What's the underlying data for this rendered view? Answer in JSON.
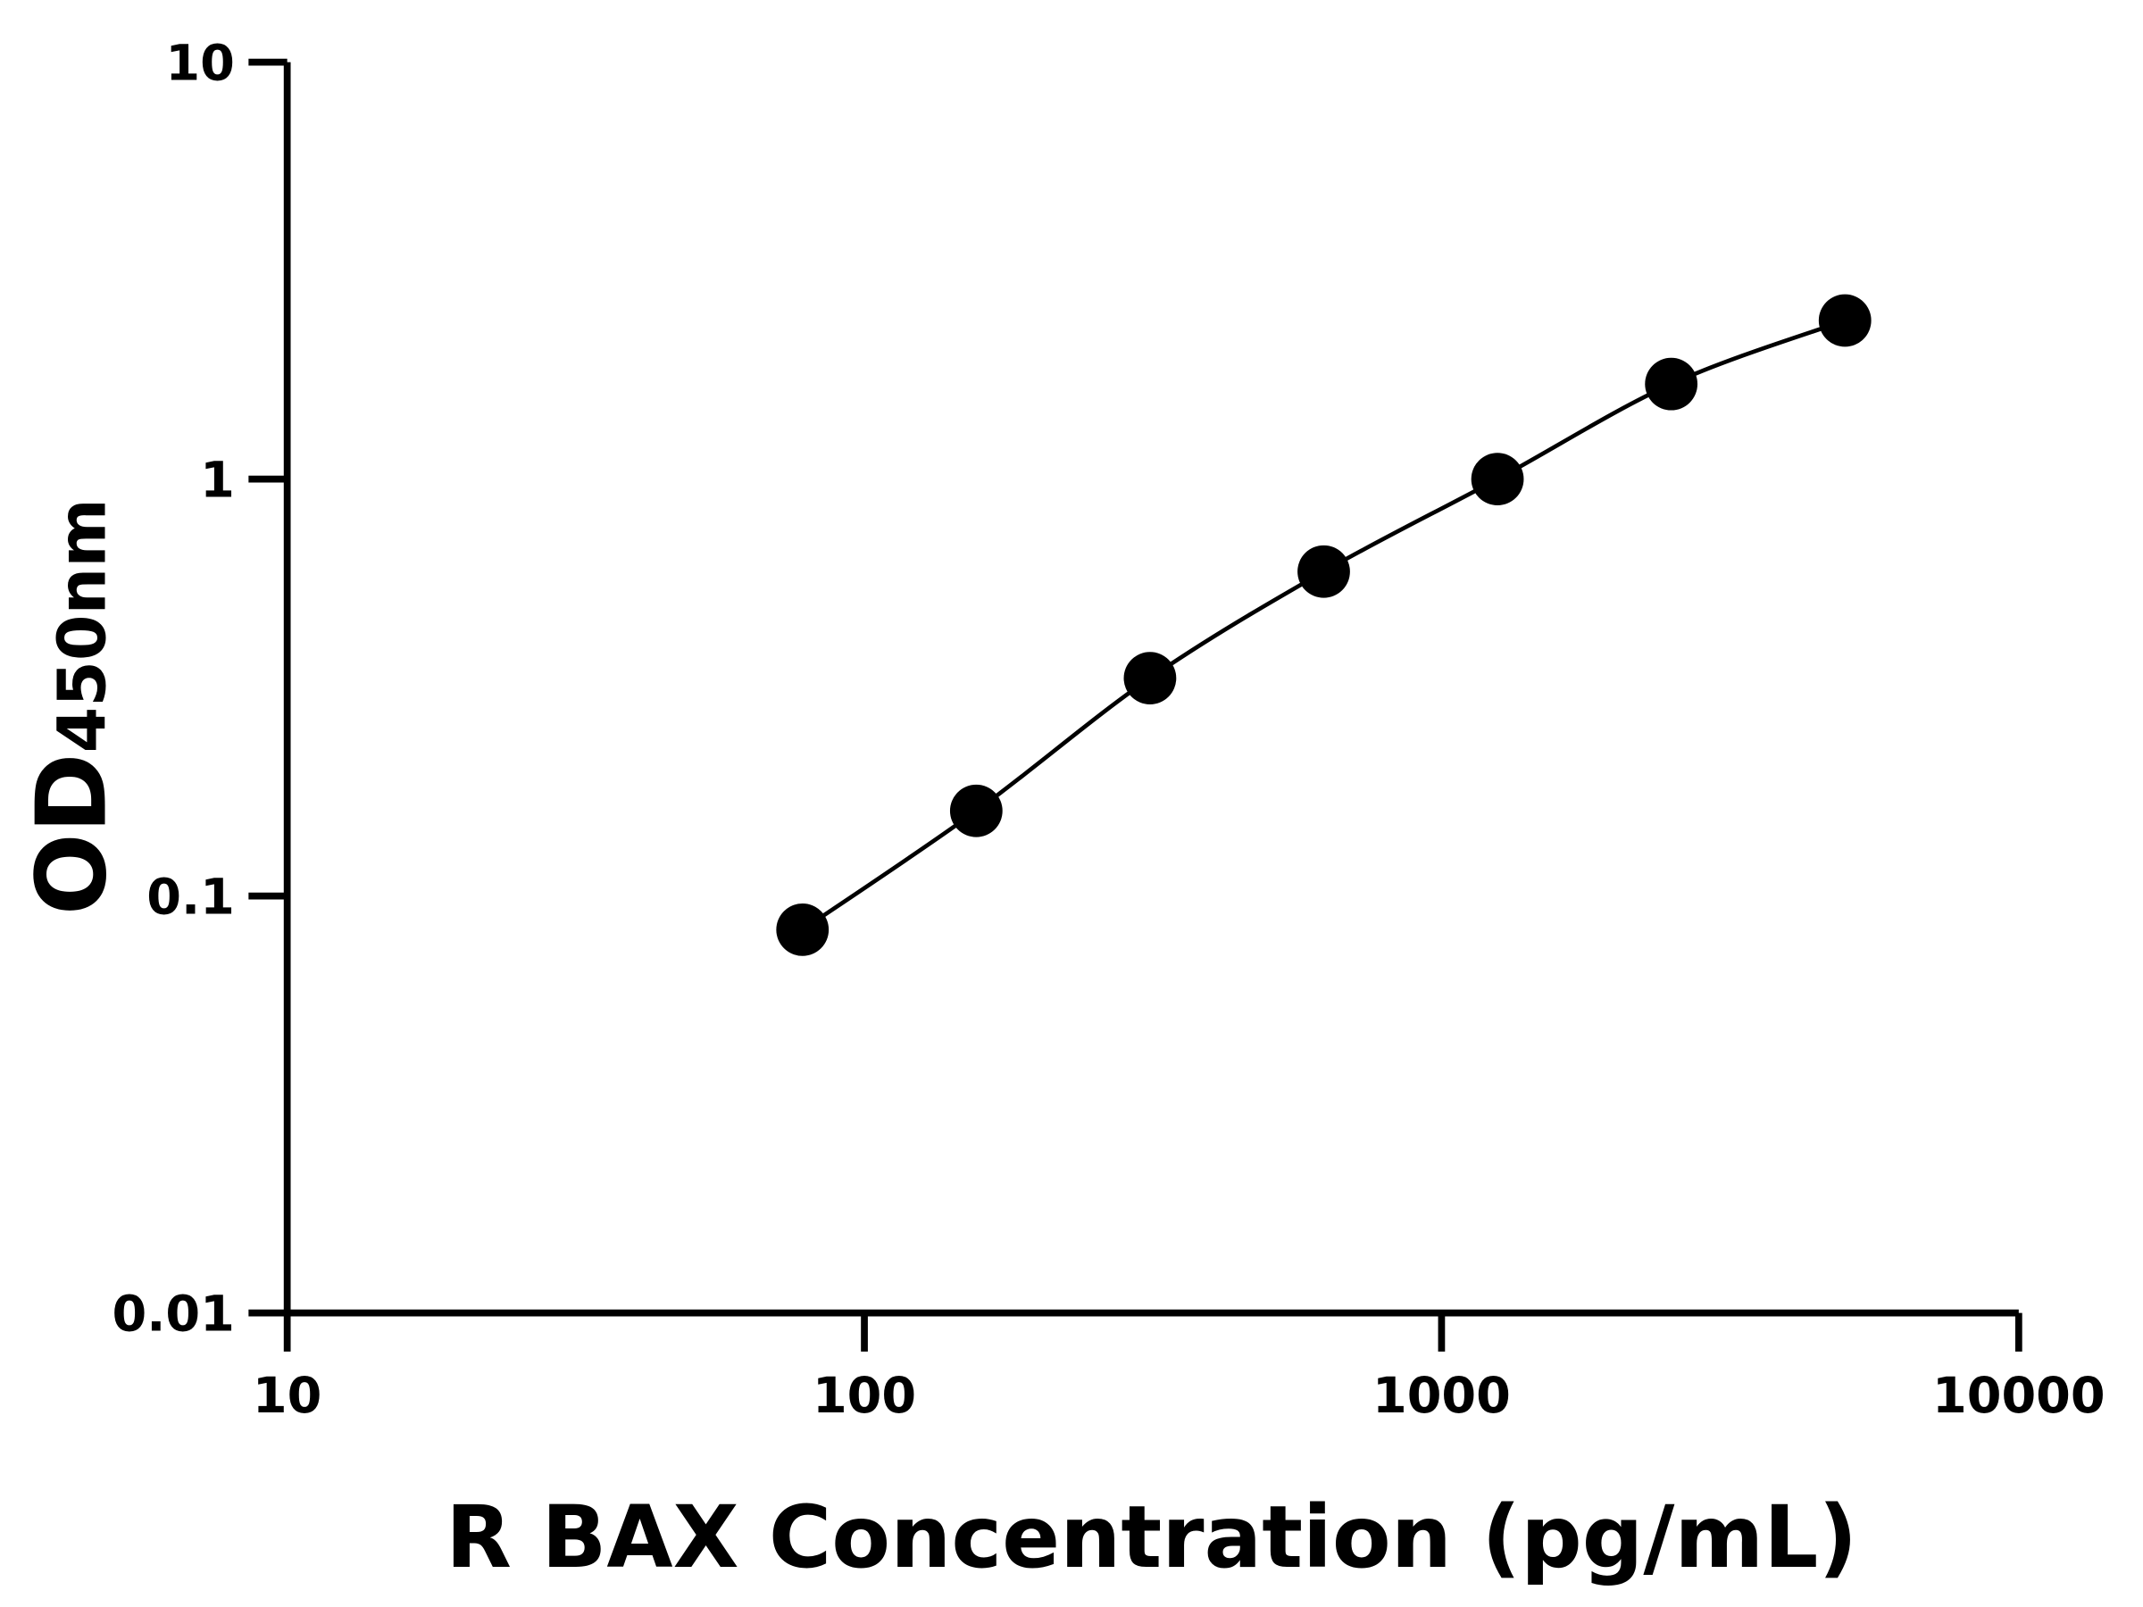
{
  "chart_data": {
    "type": "scatter",
    "x_label": "R BAX Concentration (pg/mL)",
    "y_label": {
      "main": "OD",
      "subscript": "450nm"
    },
    "x": [
      78.125,
      156.25,
      312.5,
      625,
      1250,
      2500,
      5000
    ],
    "values": [
      0.083,
      0.16,
      0.333,
      0.6,
      1.0,
      1.69,
      2.4
    ],
    "color": "#000000",
    "xscale": "log",
    "yscale": "log",
    "xlim": [
      10,
      10000
    ],
    "ylim": [
      0.01,
      10
    ],
    "xticks": [
      10,
      100,
      1000,
      10000
    ],
    "yticks": [
      0.01,
      0.1,
      1,
      10
    ],
    "grid": false,
    "fit_line": true
  }
}
